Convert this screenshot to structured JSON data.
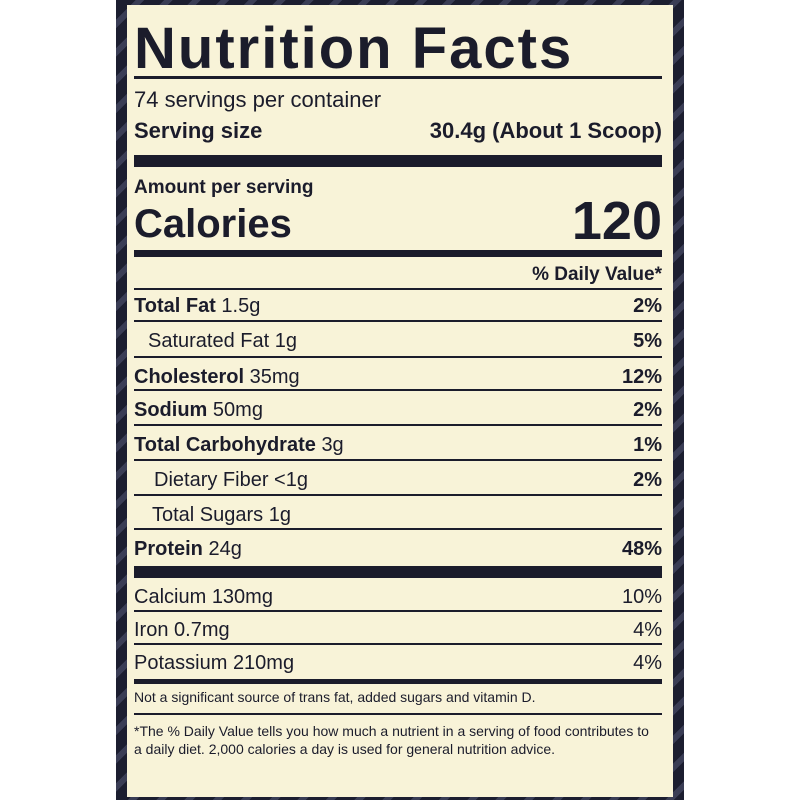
{
  "title": "Nutrition Facts",
  "servings": "74 servings per container",
  "serving_size": {
    "label": "Serving size",
    "value": "30.4g (About 1 Scoop)"
  },
  "amount_per_serving": "Amount per serving",
  "calories": {
    "label": "Calories",
    "value": 120
  },
  "daily_value_header": "% Daily Value*",
  "nutrients": [
    {
      "name": "Total Fat",
      "amount": "1.5g",
      "dv": "2%"
    },
    {
      "name": "Saturated Fat",
      "amount": "1g",
      "dv": "5%"
    },
    {
      "name": "Cholesterol",
      "amount": "35mg",
      "dv": "12%"
    },
    {
      "name": "Sodium",
      "amount": "50mg",
      "dv": "2%"
    },
    {
      "name": "Total Carbohydrate",
      "amount": "3g",
      "dv": "1%"
    },
    {
      "name": "Dietary Fiber",
      "amount": "<1g",
      "dv": "2%"
    },
    {
      "name": "Total Sugars",
      "amount": "1g"
    },
    {
      "name": "Protein",
      "amount": "24g",
      "dv": "48%"
    }
  ],
  "minerals": [
    {
      "name": "Calcium",
      "amount": "130mg",
      "dv": "10%"
    },
    {
      "name": "Iron",
      "amount": "0.7mg",
      "dv": "4%"
    },
    {
      "name": "Potassium",
      "amount": "210mg",
      "dv": "4%"
    }
  ],
  "note": "Not a significant source of trans fat, added sugars and vitamin D.",
  "footnote": "*The % Daily Value tells you how much a nutrient in a serving of food contributes to a daily diet. 2,000 calories a day is used for general nutrition advice."
}
